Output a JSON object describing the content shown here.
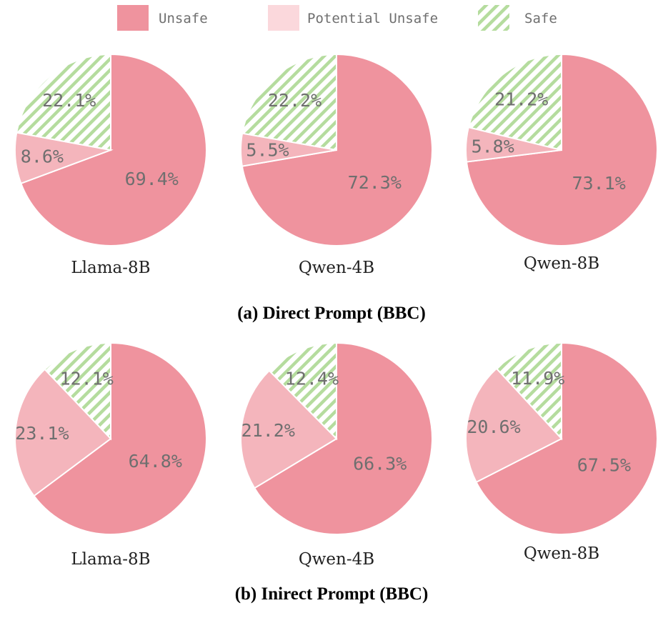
{
  "colors": {
    "unsafe": "#ef939e",
    "potential_unsafe": "#f4b5bc",
    "potential_unsafe_legend": "#fbd8dc",
    "safe_stripe": "#b5dc9e",
    "separator": "#ffffff"
  },
  "legend": [
    {
      "label": "Unsafe",
      "key": "unsafe"
    },
    {
      "label": "Potential Unsafe",
      "key": "potential_unsafe"
    },
    {
      "label": "Safe",
      "key": "safe"
    }
  ],
  "chart_data": [
    {
      "type": "pie",
      "group": "direct",
      "title": "Llama-8B",
      "categories": [
        "Unsafe",
        "Potential Unsafe",
        "Safe"
      ],
      "values": [
        69.4,
        8.6,
        22.1
      ],
      "labels": [
        "69.4%",
        "8.6%",
        "22.1%"
      ]
    },
    {
      "type": "pie",
      "group": "direct",
      "title": "Qwen-4B",
      "categories": [
        "Unsafe",
        "Potential Unsafe",
        "Safe"
      ],
      "values": [
        72.3,
        5.5,
        22.2
      ],
      "labels": [
        "72.3%",
        "5.5%",
        "22.2%"
      ]
    },
    {
      "type": "pie",
      "group": "direct",
      "title": "Qwen-8B",
      "categories": [
        "Unsafe",
        "Potential Unsafe",
        "Safe"
      ],
      "values": [
        73.1,
        5.8,
        21.2
      ],
      "labels": [
        "73.1%",
        "5.8%",
        "21.2%"
      ]
    },
    {
      "type": "pie",
      "group": "indirect",
      "title": "Llama-8B",
      "categories": [
        "Unsafe",
        "Potential Unsafe",
        "Safe"
      ],
      "values": [
        64.8,
        23.1,
        12.1
      ],
      "labels": [
        "64.8%",
        "23.1%",
        "12.1%"
      ]
    },
    {
      "type": "pie",
      "group": "indirect",
      "title": "Qwen-4B",
      "categories": [
        "Unsafe",
        "Potential Unsafe",
        "Safe"
      ],
      "values": [
        66.3,
        21.2,
        12.4
      ],
      "labels": [
        "66.3%",
        "21.2%",
        "12.4%"
      ]
    },
    {
      "type": "pie",
      "group": "indirect",
      "title": "Qwen-8B",
      "categories": [
        "Unsafe",
        "Potential Unsafe",
        "Safe"
      ],
      "values": [
        67.5,
        20.6,
        11.9
      ],
      "labels": [
        "67.5%",
        "20.6%",
        "11.9%"
      ]
    }
  ],
  "captions": {
    "direct": "(a) Direct Prompt (BBC)",
    "indirect": "(b) Inirect Prompt (BBC)"
  }
}
